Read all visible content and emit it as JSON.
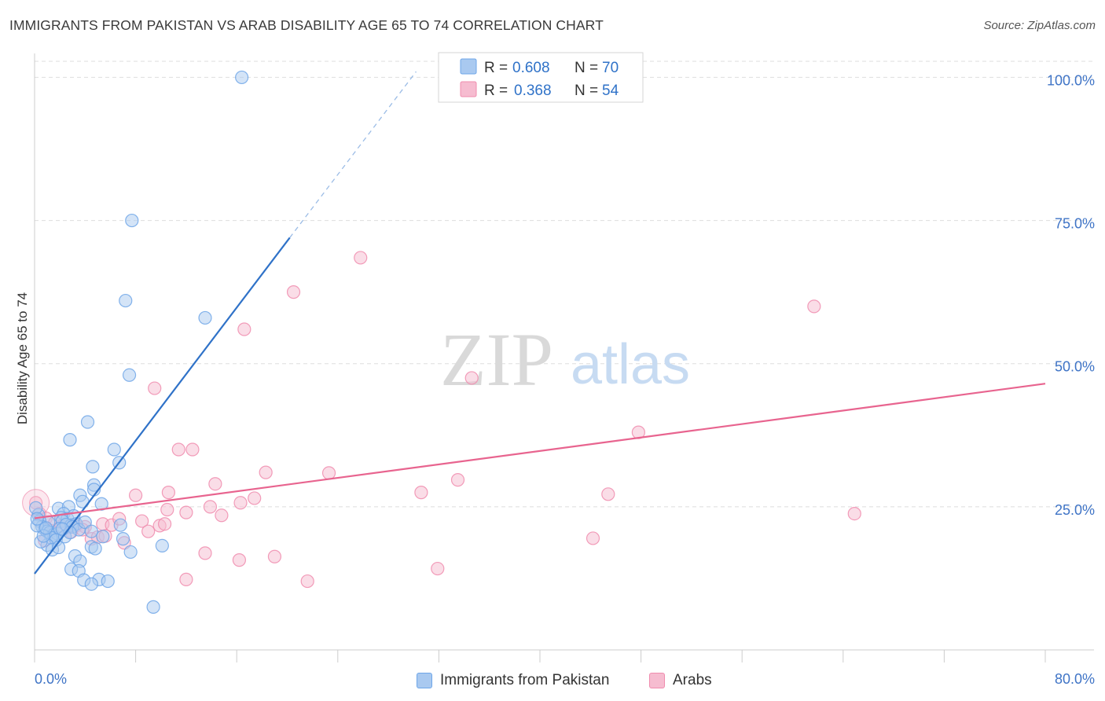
{
  "header": {
    "title": "IMMIGRANTS FROM PAKISTAN VS ARAB DISABILITY AGE 65 TO 74 CORRELATION CHART",
    "source": "Source: ZipAtlas.com"
  },
  "watermark": {
    "zip": "ZIP",
    "atlas": "atlas"
  },
  "legend_top": [
    {
      "r_label": "R =",
      "r_value": "0.608",
      "n_label": "N =",
      "n_value": "70"
    },
    {
      "r_label": "R =",
      "r_value": "0.368",
      "n_label": "N =",
      "n_value": "54"
    }
  ],
  "chart_data": {
    "type": "scatter",
    "title": "IMMIGRANTS FROM PAKISTAN VS ARAB DISABILITY AGE 65 TO 74 CORRELATION CHART",
    "xlabel": "",
    "ylabel": "Disability Age 65 to 74",
    "xlim": [
      0,
      80
    ],
    "ylim": [
      0,
      105
    ],
    "x_tick_labels": [
      "0.0%",
      "80.0%"
    ],
    "y_ticks": [
      25,
      50,
      75,
      100
    ],
    "y_tick_labels": [
      "25.0%",
      "50.0%",
      "75.0%",
      "100.0%"
    ],
    "grid": true,
    "legend_position": "bottom",
    "series": [
      {
        "name": "Immigrants from Pakistan",
        "color": "#6ea6e8",
        "fill": "#a9c9f0",
        "line_color": "#2f72c8",
        "R": 0.608,
        "N": 70,
        "trend": {
          "x0": 0,
          "y0": 13.3,
          "x1": 20.2,
          "y1": 72.0,
          "dashed_to_x": 30.2,
          "dashed_to_y": 101.0
        },
        "points": [
          [
            16.4,
            100.0
          ],
          [
            7.7,
            75.0
          ],
          [
            7.2,
            61.0
          ],
          [
            13.5,
            58.0
          ],
          [
            7.5,
            48.0
          ],
          [
            4.2,
            39.8
          ],
          [
            2.8,
            36.7
          ],
          [
            6.3,
            35.0
          ],
          [
            6.7,
            32.7
          ],
          [
            4.6,
            32.0
          ],
          [
            4.7,
            28.8
          ],
          [
            4.7,
            28.0
          ],
          [
            3.6,
            27.0
          ],
          [
            5.3,
            25.5
          ],
          [
            3.8,
            25.9
          ],
          [
            1.9,
            24.7
          ],
          [
            2.7,
            25.0
          ],
          [
            2.3,
            23.8
          ],
          [
            2.1,
            23.1
          ],
          [
            2.6,
            22.9
          ],
          [
            3.1,
            23.4
          ],
          [
            1.1,
            22.3
          ],
          [
            2.2,
            22.5
          ],
          [
            2.9,
            21.8
          ],
          [
            3.3,
            22.0
          ],
          [
            0.3,
            23.6
          ],
          [
            0.4,
            22.5
          ],
          [
            0.6,
            21.5
          ],
          [
            0.8,
            21.1
          ],
          [
            1.0,
            20.7
          ],
          [
            1.2,
            20.5
          ],
          [
            1.5,
            20.1
          ],
          [
            1.6,
            19.6
          ],
          [
            1.8,
            20.3
          ],
          [
            2.0,
            21.2
          ],
          [
            2.5,
            21.9
          ],
          [
            3.0,
            21.5
          ],
          [
            3.5,
            21.0
          ],
          [
            4.0,
            22.3
          ],
          [
            4.5,
            20.7
          ],
          [
            1.3,
            19.6
          ],
          [
            1.7,
            19.2
          ],
          [
            2.4,
            19.8
          ],
          [
            1.0,
            18.3
          ],
          [
            0.5,
            18.9
          ],
          [
            0.7,
            19.9
          ],
          [
            1.4,
            17.5
          ],
          [
            1.9,
            17.9
          ],
          [
            0.2,
            21.7
          ],
          [
            2.8,
            20.5
          ],
          [
            4.5,
            18.0
          ],
          [
            4.8,
            17.7
          ],
          [
            7.6,
            17.1
          ],
          [
            10.1,
            18.2
          ],
          [
            7.0,
            19.4
          ],
          [
            6.8,
            21.8
          ],
          [
            5.4,
            19.8
          ],
          [
            3.2,
            16.4
          ],
          [
            3.6,
            15.5
          ],
          [
            2.9,
            14.1
          ],
          [
            3.5,
            13.8
          ],
          [
            3.9,
            12.2
          ],
          [
            5.1,
            12.3
          ],
          [
            5.8,
            12.0
          ],
          [
            4.5,
            11.5
          ],
          [
            9.4,
            7.5
          ],
          [
            0.1,
            24.8
          ],
          [
            0.2,
            22.9
          ],
          [
            0.9,
            21.3
          ],
          [
            2.2,
            21.1
          ]
        ]
      },
      {
        "name": "Arabs",
        "color": "#f08cae",
        "fill": "#f6bcd0",
        "line_color": "#e8648f",
        "R": 0.368,
        "N": 54,
        "trend": {
          "x0": 0,
          "y0": 23.0,
          "x1": 80,
          "y1": 46.5
        },
        "points": [
          [
            0.1,
            25.7
          ],
          [
            25.8,
            68.5
          ],
          [
            20.5,
            62.5
          ],
          [
            61.7,
            60.0
          ],
          [
            16.6,
            56.0
          ],
          [
            34.6,
            47.5
          ],
          [
            9.5,
            45.7
          ],
          [
            47.8,
            38.0
          ],
          [
            11.4,
            35.0
          ],
          [
            12.5,
            35.0
          ],
          [
            18.3,
            31.0
          ],
          [
            23.3,
            30.9
          ],
          [
            33.5,
            29.7
          ],
          [
            14.3,
            29.0
          ],
          [
            30.6,
            27.5
          ],
          [
            8.0,
            27.0
          ],
          [
            10.6,
            27.5
          ],
          [
            17.4,
            26.5
          ],
          [
            45.4,
            27.2
          ],
          [
            16.3,
            25.7
          ],
          [
            13.9,
            25.0
          ],
          [
            10.5,
            24.5
          ],
          [
            12.0,
            24.0
          ],
          [
            14.8,
            23.5
          ],
          [
            0.4,
            23.8
          ],
          [
            0.9,
            23.0
          ],
          [
            1.6,
            22.2
          ],
          [
            2.1,
            21.6
          ],
          [
            2.6,
            21.4
          ],
          [
            3.3,
            21.7
          ],
          [
            4.0,
            21.5
          ],
          [
            5.4,
            22.0
          ],
          [
            6.1,
            21.8
          ],
          [
            6.7,
            22.9
          ],
          [
            8.5,
            22.5
          ],
          [
            9.9,
            21.7
          ],
          [
            10.3,
            22.0
          ],
          [
            1.3,
            20.8
          ],
          [
            2.9,
            20.6
          ],
          [
            3.8,
            21.0
          ],
          [
            4.5,
            19.4
          ],
          [
            5.0,
            19.7
          ],
          [
            5.6,
            19.9
          ],
          [
            7.1,
            18.7
          ],
          [
            9.0,
            20.7
          ],
          [
            0.8,
            19.1
          ],
          [
            44.2,
            19.5
          ],
          [
            64.9,
            23.8
          ],
          [
            13.5,
            16.9
          ],
          [
            16.2,
            15.7
          ],
          [
            19.0,
            16.3
          ],
          [
            31.9,
            14.2
          ],
          [
            12.0,
            12.3
          ],
          [
            21.6,
            12.0
          ]
        ]
      }
    ]
  }
}
